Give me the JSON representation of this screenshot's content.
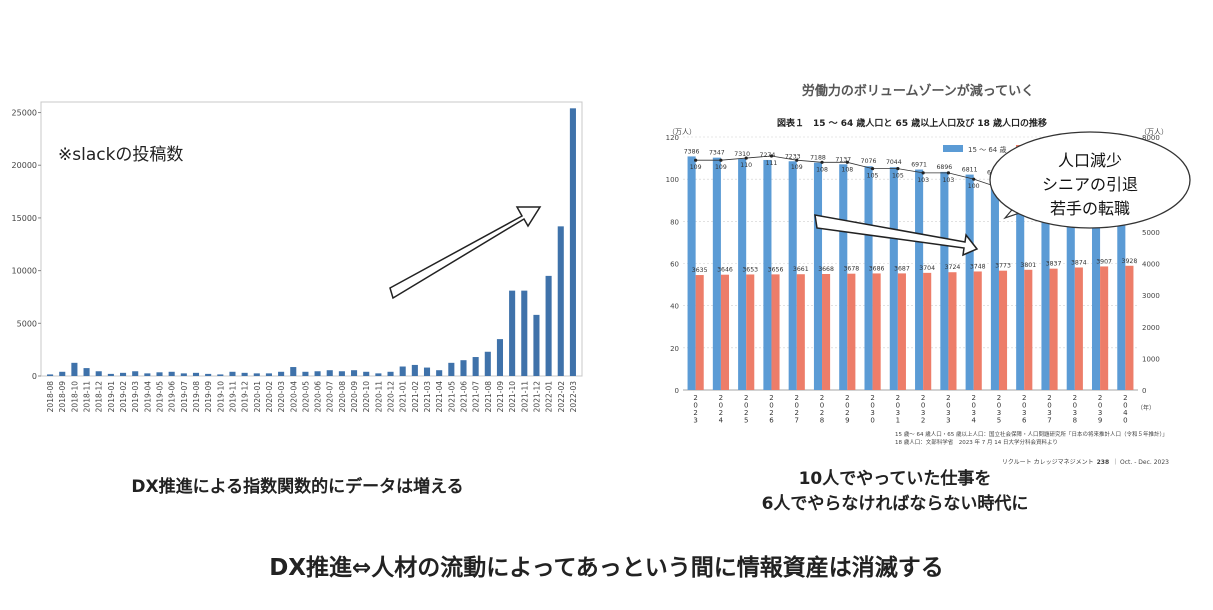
{
  "left_chart": {
    "annotation": "※slackの投稿数",
    "caption": "DX推進による指数関数的にデータは増える",
    "chart_data": {
      "type": "bar",
      "title": "",
      "xlabel": "",
      "ylabel": "",
      "ylim": [
        0,
        26000
      ],
      "yticks": [
        0,
        5000,
        10000,
        15000,
        20000,
        25000
      ],
      "grid": false,
      "categories": [
        "2018-08",
        "2018-09",
        "2018-10",
        "2018-11",
        "2018-12",
        "2019-01",
        "2019-02",
        "2019-03",
        "2019-04",
        "2019-05",
        "2019-06",
        "2019-07",
        "2019-08",
        "2019-09",
        "2019-10",
        "2019-11",
        "2019-12",
        "2020-01",
        "2020-02",
        "2020-03",
        "2020-04",
        "2020-05",
        "2020-06",
        "2020-07",
        "2020-08",
        "2020-09",
        "2020-10",
        "2020-11",
        "2020-12",
        "2021-01",
        "2021-02",
        "2021-03",
        "2021-04",
        "2021-05",
        "2021-06",
        "2021-07",
        "2021-08",
        "2021-09",
        "2021-10",
        "2021-11",
        "2021-12",
        "2022-01",
        "2022-02",
        "2022-03"
      ],
      "values": [
        150,
        400,
        1250,
        750,
        450,
        200,
        300,
        450,
        250,
        350,
        400,
        250,
        300,
        200,
        150,
        400,
        300,
        250,
        250,
        400,
        850,
        400,
        450,
        550,
        450,
        550,
        400,
        250,
        400,
        900,
        1050,
        800,
        550,
        1250,
        1500,
        1800,
        2300,
        3500,
        8100,
        8100,
        5800,
        9500,
        14200,
        25400
      ],
      "color": "#3f72aa"
    }
  },
  "right_chart": {
    "header": "労働力のボリュームゾーンが減っていく",
    "caption_line1": "10人でやっていた仕事を",
    "caption_line2": "6人でやらなければならない時代に",
    "bubble": {
      "line1": "人口減少",
      "line2": "シニアの引退",
      "line3": "若手の転職"
    },
    "source_line1": "15 歳～ 64 歳人口・65 歳以上人口：国立社会保障・人口問題研究所「日本の将来推計人口（令和５年推計）」",
    "source_line2": "18 歳人口：文部科学省　2023 年 7 月 14 日大学分科会資料より",
    "publisher_prefix": "リクルート カレッジマネジメント",
    "publisher_num": "238",
    "publisher_suffix": "｜ Oct. - Dec. 2023",
    "chart_data": {
      "type": "bar",
      "title": "図表１　15 ～ 64 歳人口と 65 歳以上人口及び 18 歳人口の推移",
      "left_axis_unit": "（万人）",
      "right_axis_unit": "（万人）",
      "x_unit": "（年）",
      "ylim_left": [
        0,
        8000
      ],
      "ylim_right": [
        0,
        120
      ],
      "yticks_left": [
        0,
        1000,
        2000,
        3000,
        4000,
        5000,
        6000,
        7000,
        8000
      ],
      "yticks_right": [
        0,
        20,
        40,
        60,
        80,
        100,
        120
      ],
      "categories": [
        "2023",
        "2024",
        "2025",
        "2026",
        "2027",
        "2028",
        "2029",
        "2030",
        "2031",
        "2032",
        "2033",
        "2034",
        "2035",
        "2036",
        "2037",
        "2038",
        "2039",
        "2040"
      ],
      "series": [
        {
          "name": "15 ～ 64 歳",
          "color": "#5b9bd5",
          "values": [
            7386,
            7347,
            7310,
            7274,
            7233,
            7188,
            7137,
            7076,
            7044,
            6971,
            6896,
            6811,
            6722,
            6612,
            6501,
            6382,
            6258,
            6213
          ],
          "labels": [
            "7386",
            "7347",
            "7310",
            "7274",
            "7233",
            "7188",
            "7137",
            "7076",
            "7044",
            "6971",
            "6896",
            "6811",
            "6722",
            "",
            "",
            "",
            "",
            ""
          ]
        },
        {
          "name": "65 歳以上",
          "color": "#ed7d69",
          "values": [
            3635,
            3646,
            3653,
            3656,
            3661,
            3668,
            3678,
            3686,
            3687,
            3704,
            3724,
            3748,
            3773,
            3801,
            3837,
            3874,
            3907,
            3928
          ],
          "labels": [
            "3635",
            "3646",
            "3653",
            "3656",
            "3661",
            "3668",
            "3678",
            "3686",
            "3687",
            "3704",
            "3724",
            "3748",
            "3773",
            "3801",
            "3837",
            "3874",
            "3907",
            "3928"
          ]
        },
        {
          "name": "18 歳人口",
          "type": "line",
          "axis": "right",
          "values": [
            109,
            109,
            110,
            111,
            109,
            108,
            108,
            105,
            105,
            103,
            103,
            100,
            96,
            95,
            93,
            91,
            89,
            88
          ],
          "labels": [
            "109",
            "109",
            "110",
            "111",
            "109",
            "108",
            "108",
            "105",
            "105",
            "103",
            "103",
            "100",
            "96",
            "",
            "",
            "",
            "",
            ""
          ]
        }
      ],
      "legend": "top-right"
    }
  },
  "headline": "DX推進⇔人材の流動によってあっという間に情報資産は消滅する"
}
